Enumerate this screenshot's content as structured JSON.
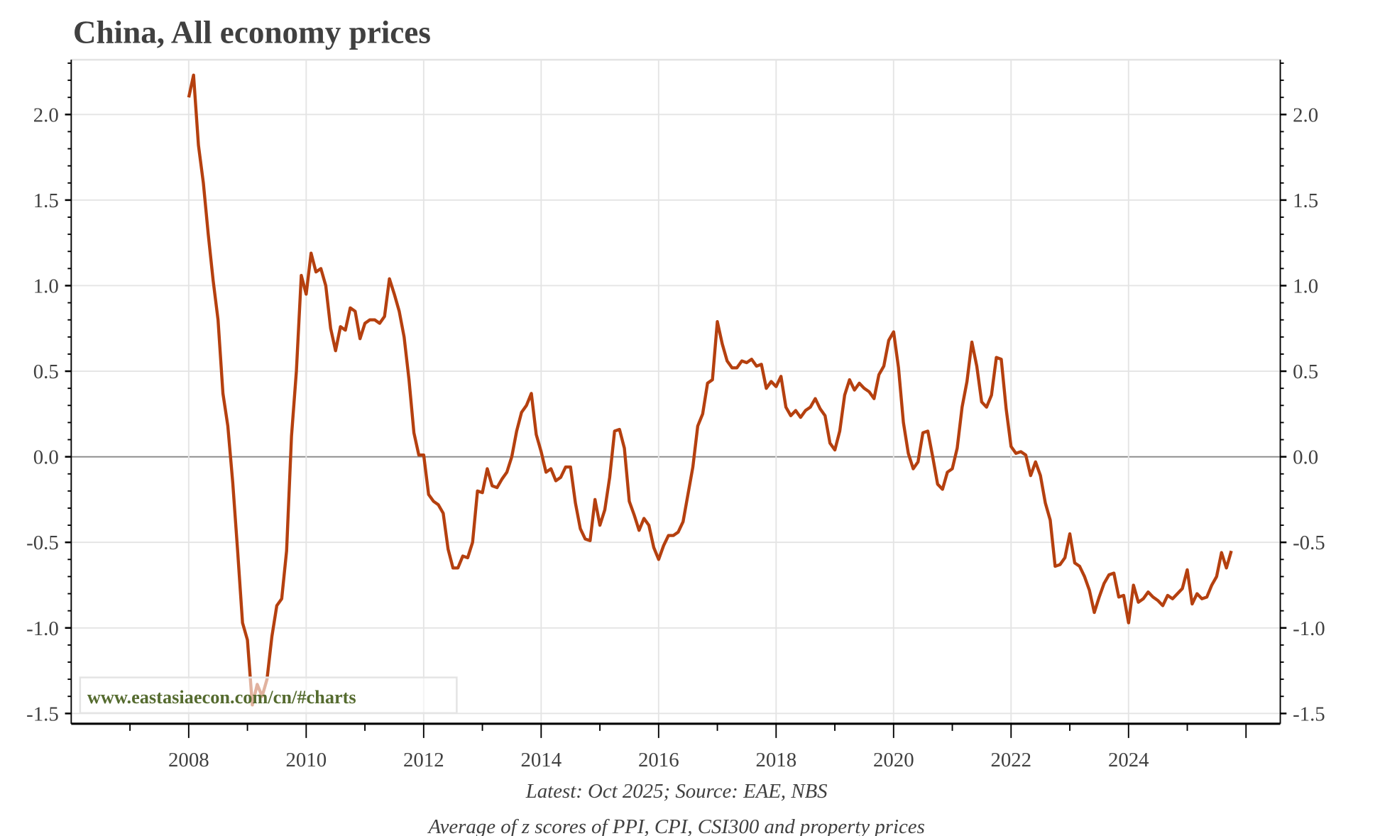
{
  "chart_data": {
    "type": "line",
    "title": "China, All economy prices",
    "captions": [
      "Latest: Oct 2025; Source: EAE, NBS",
      "Average of z scores of PPI, CPI, CSI300 and property prices"
    ],
    "watermark": "www.eastasiaecon.com/cn/#charts",
    "xlabel": "",
    "ylabel": "",
    "x_ticks": [
      "2008",
      "2010",
      "2012",
      "2014",
      "2016",
      "2018",
      "2020",
      "2022",
      "2024"
    ],
    "y_ticks": [
      "2.0",
      "1.5",
      "1.0",
      "0.5",
      "0.0",
      "-0.5",
      "-1.0",
      "-1.5"
    ],
    "ylim": [
      -1.56,
      2.32
    ],
    "xlim": [
      "2006-01",
      "2026-08"
    ],
    "grid": true,
    "dual_y_axis": true,
    "line_color": "#b5400f",
    "x_start": "2008-01",
    "x_end": "2025-10",
    "frequency": "monthly",
    "series": [
      {
        "values": [
          2.1,
          2.23,
          1.82,
          1.6,
          1.3,
          1.03,
          0.8,
          0.37,
          0.18,
          -0.15,
          -0.55,
          -0.97,
          -1.07,
          -1.45,
          -1.33,
          -1.4,
          -1.3,
          -1.05,
          -0.87,
          -0.83,
          -0.55,
          0.12,
          0.5,
          1.06,
          0.95,
          1.19,
          1.08,
          1.1,
          1.0,
          0.75,
          0.62,
          0.76,
          0.74,
          0.87,
          0.85,
          0.69,
          0.78,
          0.8,
          0.8,
          0.78,
          0.82,
          1.04,
          0.95,
          0.85,
          0.7,
          0.45,
          0.14,
          0.01,
          0.01,
          -0.22,
          -0.26,
          -0.28,
          -0.33,
          -0.54,
          -0.65,
          -0.65,
          -0.58,
          -0.59,
          -0.5,
          -0.2,
          -0.21,
          -0.07,
          -0.17,
          -0.18,
          -0.13,
          -0.09,
          0.0,
          0.15,
          0.26,
          0.3,
          0.37,
          0.13,
          0.03,
          -0.09,
          -0.07,
          -0.14,
          -0.12,
          -0.06,
          -0.06,
          -0.27,
          -0.42,
          -0.48,
          -0.49,
          -0.25,
          -0.4,
          -0.31,
          -0.12,
          0.15,
          0.16,
          0.05,
          -0.26,
          -0.34,
          -0.43,
          -0.36,
          -0.4,
          -0.53,
          -0.6,
          -0.52,
          -0.46,
          -0.46,
          -0.44,
          -0.38,
          -0.22,
          -0.06,
          0.18,
          0.25,
          0.43,
          0.45,
          0.79,
          0.66,
          0.56,
          0.52,
          0.52,
          0.56,
          0.55,
          0.57,
          0.53,
          0.54,
          0.4,
          0.44,
          0.41,
          0.47,
          0.29,
          0.24,
          0.27,
          0.23,
          0.27,
          0.29,
          0.34,
          0.28,
          0.24,
          0.08,
          0.04,
          0.15,
          0.36,
          0.45,
          0.39,
          0.43,
          0.4,
          0.38,
          0.34,
          0.48,
          0.53,
          0.68,
          0.73,
          0.52,
          0.2,
          0.02,
          -0.07,
          -0.03,
          0.14,
          0.15,
          0.0,
          -0.16,
          -0.19,
          -0.09,
          -0.07,
          0.05,
          0.29,
          0.44,
          0.67,
          0.53,
          0.32,
          0.29,
          0.36,
          0.58,
          0.57,
          0.28,
          0.06,
          0.02,
          0.03,
          0.01,
          -0.11,
          -0.03,
          -0.11,
          -0.27,
          -0.37,
          -0.64,
          -0.63,
          -0.59,
          -0.45,
          -0.62,
          -0.64,
          -0.7,
          -0.78,
          -0.91,
          -0.82,
          -0.74,
          -0.69,
          -0.68,
          -0.82,
          -0.81,
          -0.97,
          -0.75,
          -0.85,
          -0.83,
          -0.79,
          -0.82,
          -0.84,
          -0.87,
          -0.81,
          -0.83,
          -0.8,
          -0.77,
          -0.66,
          -0.86,
          -0.8,
          -0.83,
          -0.82,
          -0.75,
          -0.7,
          -0.56,
          -0.65,
          -0.55
        ]
      }
    ]
  }
}
